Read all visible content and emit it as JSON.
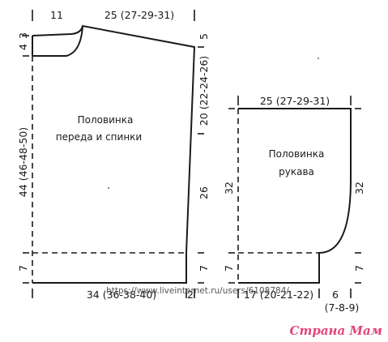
{
  "body_piece": {
    "label_line1": "Половинка",
    "label_line2": "переда и спинки",
    "dims": {
      "top_neck": "11",
      "top_shoulder": "25 (27-29-31)",
      "left_top": "3",
      "left_second": "4",
      "left_main": "44 (46-48-50)",
      "left_hem": "7",
      "right_shoulder_drop": "5",
      "right_armhole": "20 (22-24-26)",
      "right_lower": "26",
      "right_hem": "7",
      "bottom_width": "34 (36-38-40)",
      "bottom_offset": "2"
    }
  },
  "sleeve_piece": {
    "label_line1": "Половинка",
    "label_line2": "рукава",
    "dims": {
      "top_width": "25 (27-29-31)",
      "left_height": "32",
      "right_height": "32",
      "left_hem": "7",
      "right_hem": "7",
      "bottom_width": "17 (20-21-22)",
      "bottom_offset": "6",
      "bottom_offset_sizes": "(7-8-9)"
    }
  },
  "watermark": {
    "url": "https://www.liveinternet.ru/users/6108784/",
    "brand": "Страна Мам"
  },
  "colors": {
    "ink": "#1a1a1a",
    "brand": "#e0457b"
  }
}
